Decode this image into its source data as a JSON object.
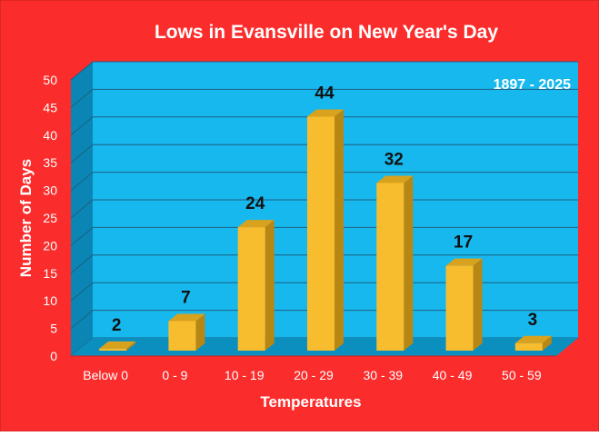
{
  "chart_data": {
    "type": "bar",
    "title": "Lows in Evansville on New Year's Day",
    "annotation": "1897 - 2025",
    "xlabel": "Temperatures",
    "ylabel": "Number of Days",
    "categories": [
      "Below 0",
      "0 - 9",
      "10 - 19",
      "20 - 29",
      "30 - 39",
      "40 - 49",
      "50 - 59"
    ],
    "values": [
      2,
      7,
      24,
      44,
      32,
      17,
      3
    ],
    "ylim": [
      0,
      50
    ],
    "yticks": [
      0,
      5,
      10,
      15,
      20,
      25,
      30,
      35,
      40,
      45,
      50
    ],
    "grid": true,
    "legend": "none",
    "colors": {
      "background": "#fb2c2c",
      "plot_area": "#17b8ee",
      "floor": "#0a8fbf",
      "side_wall": "#0b86b4",
      "bar_front": "#f8bd2e",
      "bar_side": "#b88612",
      "bar_top": "#d9a21e",
      "gridline": "#1c5f80"
    }
  }
}
